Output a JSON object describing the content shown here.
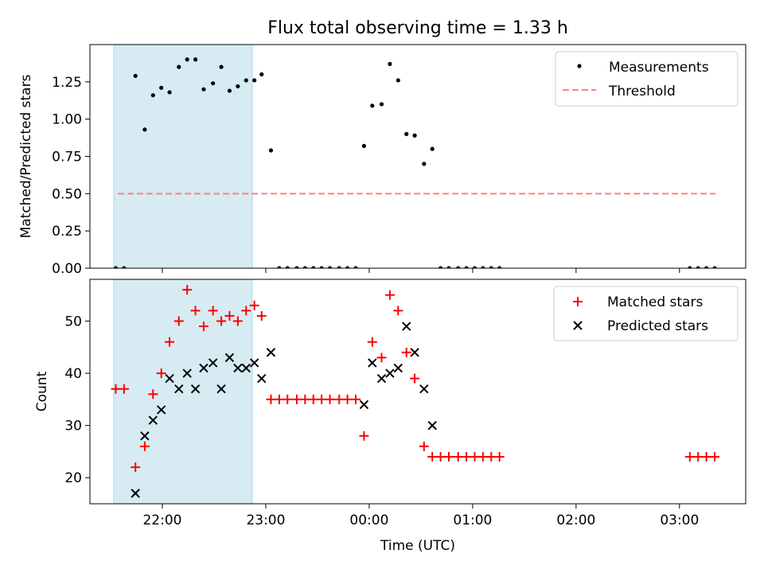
{
  "figure": {
    "title": "Flux total observing time = 1.33 h"
  },
  "colors": {
    "highlight": "#add8e6",
    "measurement": "#000000",
    "threshold": "#ff8080",
    "matched": "#ff0000",
    "predicted": "#000000"
  },
  "chart_data": [
    {
      "type": "scatter",
      "ylabel": "Matched/Predicted stars",
      "xlim": [
        -0.7,
        5.64
      ],
      "ylim": [
        0,
        1.5
      ],
      "yticks": [
        0.0,
        0.25,
        0.5,
        0.75,
        1.0,
        1.25
      ],
      "ytick_labels": [
        "0.00",
        "0.25",
        "0.50",
        "0.75",
        "1.00",
        "1.25"
      ],
      "highlight_span": [
        -0.47,
        0.87
      ],
      "legend_position": "upper right",
      "threshold": {
        "name": "Threshold",
        "y": 0.5,
        "x": [
          -0.43,
          5.35
        ]
      },
      "series": [
        {
          "name": "Measurements",
          "x": [
            -0.45,
            -0.37,
            -0.26,
            -0.17,
            -0.09,
            -0.01,
            0.07,
            0.16,
            0.24,
            0.32,
            0.4,
            0.49,
            0.57,
            0.65,
            0.73,
            0.81,
            0.89,
            0.96,
            1.05,
            1.13,
            1.21,
            1.3,
            1.38,
            1.46,
            1.54,
            1.62,
            1.71,
            1.79,
            1.87,
            1.95,
            2.03,
            2.12,
            2.2,
            2.28,
            2.36,
            2.44,
            2.53,
            2.61,
            2.69,
            2.77,
            2.86,
            2.94,
            3.02,
            3.1,
            3.18,
            3.26,
            5.1,
            5.18,
            5.26,
            5.34
          ],
          "y": [
            0.0,
            0.0,
            1.29,
            0.93,
            1.16,
            1.21,
            1.18,
            1.35,
            1.4,
            1.4,
            1.2,
            1.24,
            1.35,
            1.19,
            1.22,
            1.26,
            1.26,
            1.3,
            0.79,
            0.0,
            0.0,
            0.0,
            0.0,
            0.0,
            0.0,
            0.0,
            0.0,
            0.0,
            0.0,
            0.82,
            1.09,
            1.1,
            1.37,
            1.26,
            0.9,
            0.89,
            0.7,
            0.8,
            0.0,
            0.0,
            0.0,
            0.0,
            0.0,
            0.0,
            0.0,
            0.0,
            0.0,
            0.0,
            0.0,
            0.0
          ]
        }
      ]
    },
    {
      "type": "scatter",
      "xlabel": "Time (UTC)",
      "ylabel": "Count",
      "xlim": [
        -0.7,
        5.64
      ],
      "ylim": [
        15,
        58
      ],
      "yticks": [
        20,
        30,
        40,
        50
      ],
      "ytick_labels": [
        "20",
        "30",
        "40",
        "50"
      ],
      "xticks": [
        0,
        1,
        2,
        3,
        4,
        5
      ],
      "xtick_labels": [
        "22:00",
        "23:00",
        "00:00",
        "01:00",
        "02:00",
        "03:00"
      ],
      "highlight_span": [
        -0.47,
        0.87
      ],
      "legend_position": "upper right",
      "series": [
        {
          "name": "Matched stars",
          "marker": "+",
          "x": [
            -0.45,
            -0.37,
            -0.26,
            -0.17,
            -0.09,
            -0.01,
            0.07,
            0.16,
            0.24,
            0.32,
            0.4,
            0.49,
            0.57,
            0.65,
            0.73,
            0.81,
            0.89,
            0.96,
            1.05,
            1.13,
            1.21,
            1.3,
            1.38,
            1.46,
            1.54,
            1.62,
            1.71,
            1.79,
            1.87,
            1.95,
            2.03,
            2.12,
            2.2,
            2.28,
            2.36,
            2.44,
            2.53,
            2.61,
            2.69,
            2.77,
            2.86,
            2.94,
            3.02,
            3.1,
            3.18,
            3.26,
            5.1,
            5.18,
            5.26,
            5.34
          ],
          "y": [
            37,
            37,
            22,
            26,
            36,
            40,
            46,
            50,
            56,
            52,
            49,
            52,
            50,
            51,
            50,
            52,
            53,
            51,
            35,
            35,
            35,
            35,
            35,
            35,
            35,
            35,
            35,
            35,
            35,
            28,
            46,
            43,
            55,
            52,
            44,
            39,
            26,
            24,
            24,
            24,
            24,
            24,
            24,
            24,
            24,
            24,
            24,
            24,
            24,
            24
          ]
        },
        {
          "name": "Predicted stars",
          "marker": "x",
          "x": [
            -0.26,
            -0.17,
            -0.09,
            -0.01,
            0.07,
            0.16,
            0.24,
            0.32,
            0.4,
            0.49,
            0.57,
            0.65,
            0.73,
            0.81,
            0.89,
            0.96,
            1.05,
            1.95,
            2.03,
            2.12,
            2.2,
            2.28,
            2.36,
            2.44,
            2.53,
            2.61
          ],
          "y": [
            17,
            28,
            31,
            33,
            39,
            37,
            40,
            37,
            41,
            42,
            37,
            43,
            41,
            41,
            42,
            39,
            44,
            34,
            42,
            39,
            40,
            41,
            49,
            44,
            37,
            30
          ]
        }
      ]
    }
  ]
}
